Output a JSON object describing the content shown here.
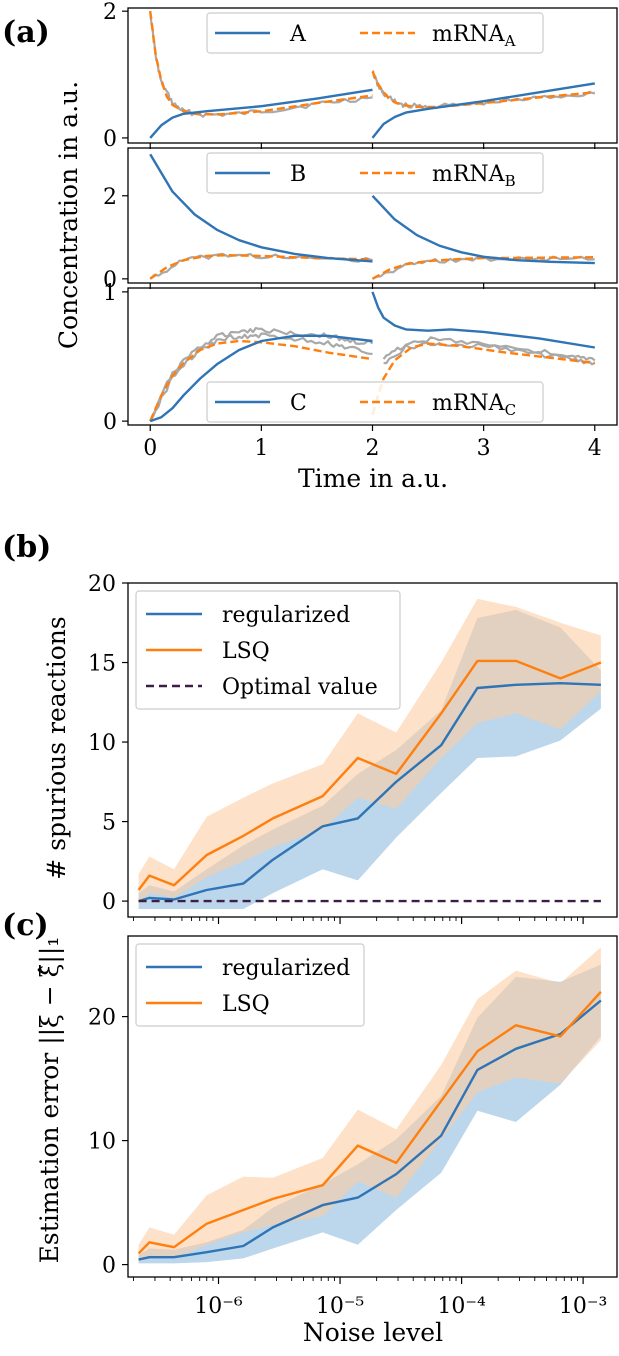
{
  "panel_labels": {
    "a": "(a)",
    "b": "(b)",
    "c": "(c)"
  },
  "colors": {
    "blue": "#2f74b5",
    "orange": "#ff7f0e",
    "gray": "#a9a9a9",
    "optimal": "#3b1f47",
    "blue_band": "#a6c8e6",
    "orange_band": "#fbcda4"
  },
  "chart_data": [
    {
      "type": "line",
      "panel": "(a)",
      "ylabel": "Concentration in a.u.",
      "xlabel": "",
      "xlim": [
        -0.2,
        4.2
      ],
      "ylim": [
        -0.08,
        2.05
      ],
      "yticks": [
        "0",
        "2"
      ],
      "legend": {
        "placement": "top-right",
        "entries": [
          {
            "text": "A",
            "style": "solid"
          },
          {
            "text": "mRNA",
            "sub": "A",
            "style": "dashed"
          }
        ]
      },
      "series": [
        {
          "name": "A",
          "style": "solid",
          "color": "blue",
          "segments": [
            {
              "x": [
                0,
                0.1,
                0.2,
                0.3,
                0.5,
                1,
                1.5,
                2
              ],
              "y": [
                0,
                0.2,
                0.32,
                0.38,
                0.42,
                0.5,
                0.62,
                0.76
              ]
            },
            {
              "x": [
                2,
                2.1,
                2.2,
                2.3,
                2.5,
                3,
                3.5,
                4
              ],
              "y": [
                0,
                0.22,
                0.33,
                0.4,
                0.46,
                0.58,
                0.72,
                0.86
              ]
            }
          ]
        },
        {
          "name": "mRNA_A",
          "style": "dashed",
          "color": "orange",
          "segments": [
            {
              "x": [
                0,
                0.05,
                0.1,
                0.15,
                0.2,
                0.3,
                0.4,
                0.6,
                1,
                1.5,
                2
              ],
              "y": [
                2,
                1.3,
                0.9,
                0.65,
                0.52,
                0.42,
                0.38,
                0.37,
                0.42,
                0.55,
                0.67
              ]
            },
            {
              "x": [
                2,
                2.05,
                2.1,
                2.15,
                2.2,
                2.3,
                2.4,
                2.6,
                3,
                3.5,
                4
              ],
              "y": [
                1.05,
                0.85,
                0.72,
                0.62,
                0.56,
                0.51,
                0.49,
                0.49,
                0.55,
                0.64,
                0.72
              ]
            }
          ]
        },
        {
          "name": "",
          "style": "noisy",
          "color": "gray",
          "segments": [
            {
              "x": [
                0,
                0.05,
                0.1,
                0.2,
                0.3,
                0.5,
                0.8,
                1.2,
                1.6,
                2
              ],
              "y": [
                2,
                1.28,
                0.88,
                0.55,
                0.42,
                0.36,
                0.38,
                0.46,
                0.56,
                0.64
              ]
            },
            {
              "x": [
                2,
                2.05,
                2.1,
                2.2,
                2.3,
                2.5,
                2.8,
                3.2,
                3.6,
                4
              ],
              "y": [
                1.05,
                0.82,
                0.7,
                0.57,
                0.51,
                0.49,
                0.52,
                0.58,
                0.65,
                0.7
              ]
            }
          ]
        }
      ]
    },
    {
      "type": "line",
      "panel": "",
      "ylabel": "",
      "xlabel": "",
      "xlim": [
        -0.2,
        4.2
      ],
      "ylim": [
        -0.1,
        3.15
      ],
      "yticks": [
        "0",
        "2"
      ],
      "legend": {
        "placement": "top-right",
        "entries": [
          {
            "text": "B",
            "style": "solid"
          },
          {
            "text": "mRNA",
            "sub": "B",
            "style": "dashed"
          }
        ]
      },
      "series": [
        {
          "name": "B",
          "style": "solid",
          "color": "blue",
          "segments": [
            {
              "x": [
                0,
                0.2,
                0.4,
                0.6,
                0.8,
                1,
                1.3,
                1.6,
                2
              ],
              "y": [
                3,
                2.1,
                1.55,
                1.18,
                0.93,
                0.76,
                0.6,
                0.5,
                0.42
              ]
            },
            {
              "x": [
                2,
                2.2,
                2.4,
                2.6,
                2.8,
                3,
                3.3,
                3.6,
                4
              ],
              "y": [
                2,
                1.43,
                1.05,
                0.8,
                0.64,
                0.53,
                0.45,
                0.41,
                0.38
              ]
            }
          ]
        },
        {
          "name": "mRNA_B",
          "style": "dashed",
          "color": "orange",
          "segments": [
            {
              "x": [
                0,
                0.15,
                0.3,
                0.5,
                0.7,
                1,
                1.5,
                2
              ],
              "y": [
                0,
                0.28,
                0.45,
                0.55,
                0.57,
                0.55,
                0.5,
                0.47
              ]
            },
            {
              "x": [
                2,
                2.15,
                2.3,
                2.5,
                2.8,
                3,
                3.5,
                4
              ],
              "y": [
                0,
                0.22,
                0.35,
                0.43,
                0.48,
                0.5,
                0.51,
                0.52
              ]
            }
          ]
        },
        {
          "name": "",
          "style": "noisy",
          "color": "gray",
          "segments": [
            {
              "x": [
                0,
                0.3,
                0.6,
                1,
                1.5,
                2
              ],
              "y": [
                0,
                0.44,
                0.57,
                0.55,
                0.49,
                0.45
              ]
            },
            {
              "x": [
                2,
                2.3,
                2.6,
                3,
                3.5,
                4
              ],
              "y": [
                0,
                0.33,
                0.44,
                0.49,
                0.48,
                0.47
              ]
            }
          ]
        }
      ]
    },
    {
      "type": "line",
      "panel": "",
      "ylabel": "",
      "xlabel": "Time in a.u.",
      "xlim": [
        -0.2,
        4.2
      ],
      "ylim": [
        -0.03,
        1.03
      ],
      "xticks": [
        "0",
        "1",
        "2",
        "3",
        "4"
      ],
      "yticks": [
        "0",
        "1"
      ],
      "legend": {
        "placement": "bottom-right",
        "entries": [
          {
            "text": "C",
            "style": "solid"
          },
          {
            "text": "mRNA",
            "sub": "C",
            "style": "dashed"
          }
        ]
      },
      "series": [
        {
          "name": "C",
          "style": "solid",
          "color": "blue",
          "segments": [
            {
              "x": [
                0,
                0.1,
                0.2,
                0.3,
                0.45,
                0.6,
                0.8,
                1,
                1.3,
                1.6,
                2
              ],
              "y": [
                0,
                0.03,
                0.1,
                0.2,
                0.33,
                0.44,
                0.55,
                0.62,
                0.66,
                0.66,
                0.62
              ]
            },
            {
              "x": [
                2,
                2.05,
                2.1,
                2.2,
                2.3,
                2.5,
                2.7,
                3,
                3.5,
                4
              ],
              "y": [
                1,
                0.88,
                0.8,
                0.74,
                0.71,
                0.7,
                0.71,
                0.69,
                0.64,
                0.57
              ]
            }
          ]
        },
        {
          "name": "mRNA_C",
          "style": "dashed",
          "color": "orange",
          "segments": [
            {
              "x": [
                0,
                0.1,
                0.2,
                0.3,
                0.45,
                0.6,
                0.8,
                1,
                1.3,
                1.6,
                2
              ],
              "y": [
                0,
                0.2,
                0.35,
                0.45,
                0.55,
                0.6,
                0.62,
                0.61,
                0.58,
                0.53,
                0.48
              ]
            },
            {
              "x": [
                2,
                2.05,
                2.1,
                2.2,
                2.35,
                2.5,
                2.8,
                3.2,
                3.6,
                4
              ],
              "y": [
                0.05,
                0.2,
                0.33,
                0.47,
                0.57,
                0.6,
                0.58,
                0.53,
                0.49,
                0.45
              ]
            }
          ]
        },
        {
          "name": "",
          "style": "noisy",
          "color": "gray",
          "segments": [
            {
              "x": [
                0,
                0.2,
                0.4,
                0.6,
                0.8,
                1,
                1.3,
                1.6,
                1.8,
                2
              ],
              "y": [
                0,
                0.38,
                0.55,
                0.65,
                0.7,
                0.71,
                0.68,
                0.66,
                0.62,
                0.6
              ]
            },
            {
              "x": [
                0,
                0.2,
                0.4,
                0.6,
                0.8,
                1,
                1.3,
                1.6,
                1.8,
                2
              ],
              "y": [
                0,
                0.34,
                0.52,
                0.62,
                0.66,
                0.66,
                0.64,
                0.6,
                0.56,
                0.52
              ]
            },
            {
              "x": [
                2.1,
                2.3,
                2.6,
                3,
                3.4,
                3.8,
                4
              ],
              "y": [
                0.45,
                0.57,
                0.6,
                0.58,
                0.53,
                0.48,
                0.45
              ]
            },
            {
              "x": [
                2.1,
                2.3,
                2.6,
                3,
                3.4,
                3.8,
                4
              ],
              "y": [
                0.48,
                0.6,
                0.64,
                0.6,
                0.55,
                0.5,
                0.47
              ]
            }
          ]
        }
      ]
    },
    {
      "type": "line",
      "panel": "(b)",
      "xscale": "log",
      "xlim": [
        1.8e-07,
        0.0019
      ],
      "ylim": [
        -1,
        20
      ],
      "ylabel": "# spurious reactions",
      "xlabel": "",
      "yticks": [
        0,
        5,
        10,
        15,
        20
      ],
      "legend": {
        "placement": "top-left",
        "entries": [
          {
            "text": "regularized",
            "style": "solid",
            "color": "blue"
          },
          {
            "text": "LSQ",
            "style": "solid",
            "color": "orange"
          },
          {
            "text": "Optimal value",
            "style": "dashed",
            "color": "optimal"
          }
        ]
      },
      "x": [
        2.2e-07,
        2.7e-07,
        4.3e-07,
        8e-07,
        1.6e-06,
        2.8e-06,
        7.2e-06,
        1.4e-05,
        2.9e-05,
        6.8e-05,
        0.000135,
        0.00028,
        0.00065,
        0.0014
      ],
      "series": [
        {
          "name": "regularized",
          "color": "blue",
          "values": [
            0,
            0.2,
            0.1,
            0.7,
            1.1,
            2.6,
            4.7,
            5.2,
            7.5,
            9.8,
            13.4,
            13.6,
            13.7,
            13.6
          ],
          "band_low": [
            -0.5,
            -0.5,
            -0.5,
            -0.5,
            -0.5,
            0.5,
            2,
            1.3,
            4,
            6.8,
            9,
            9.1,
            10.1,
            12.1
          ],
          "band_high": [
            0.5,
            1,
            0.6,
            2,
            3.5,
            4.5,
            6,
            8,
            9.5,
            12,
            17.8,
            18.3,
            17.2,
            14.5
          ]
        },
        {
          "name": "LSQ",
          "color": "orange",
          "values": [
            0.7,
            1.6,
            1,
            2.9,
            4.1,
            5.2,
            6.6,
            9,
            8,
            11.8,
            15.1,
            15.1,
            14,
            15
          ],
          "band_low": [
            -0.3,
            0.5,
            0.2,
            1.5,
            2.5,
            3.4,
            4.5,
            6.5,
            5.8,
            9,
            11.2,
            11.8,
            10.8,
            13.2
          ],
          "band_high": [
            1.7,
            2.8,
            2,
            5.3,
            6.5,
            7.4,
            8.6,
            11.8,
            10.6,
            15,
            19,
            18.5,
            17.5,
            16.7
          ]
        },
        {
          "name": "Optimal value",
          "color": "optimal",
          "style": "dashed",
          "values": [
            0,
            0,
            0,
            0,
            0,
            0,
            0,
            0,
            0,
            0,
            0,
            0,
            0,
            0
          ]
        }
      ]
    },
    {
      "type": "line",
      "panel": "(c)",
      "xscale": "log",
      "xlim": [
        1.8e-07,
        0.0019
      ],
      "ylim": [
        -1,
        26.5
      ],
      "ylabel": "Estimation error ||ξ − ξ̂||₁",
      "xlabel": "Noise level",
      "xticks": [
        1e-06,
        1e-05,
        0.0001,
        0.001
      ],
      "xtick_labels": [
        "10⁻⁶",
        "10⁻⁵",
        "10⁻⁴",
        "10⁻³"
      ],
      "yticks": [
        0,
        10,
        20
      ],
      "legend": {
        "placement": "top-left",
        "entries": [
          {
            "text": "regularized",
            "style": "solid",
            "color": "blue"
          },
          {
            "text": "LSQ",
            "style": "solid",
            "color": "orange"
          }
        ]
      },
      "x": [
        2.2e-07,
        2.7e-07,
        4.3e-07,
        8e-07,
        1.6e-06,
        2.8e-06,
        7.2e-06,
        1.4e-05,
        2.9e-05,
        6.8e-05,
        0.000135,
        0.00028,
        0.00065,
        0.0014
      ],
      "series": [
        {
          "name": "regularized",
          "color": "blue",
          "values": [
            0.4,
            0.6,
            0.6,
            1,
            1.5,
            3,
            4.8,
            5.4,
            7.3,
            10.4,
            15.7,
            17.4,
            18.6,
            21.3
          ],
          "band_low": [
            0.1,
            0.1,
            0.1,
            0.2,
            0.5,
            1.3,
            2.6,
            1.6,
            4.4,
            7.4,
            12.4,
            11.5,
            14.5,
            18.4
          ],
          "band_high": [
            0.8,
            1.3,
            1.2,
            1.8,
            2.8,
            4.6,
            6.5,
            8.1,
            10.1,
            13.6,
            19.9,
            23.2,
            22.8,
            24.2
          ]
        },
        {
          "name": "LSQ",
          "color": "orange",
          "values": [
            0.9,
            1.8,
            1.4,
            3.3,
            4.4,
            5.3,
            6.4,
            9.6,
            8.2,
            13.2,
            17.2,
            19.3,
            18.4,
            22
          ],
          "band_low": [
            0.2,
            0.6,
            0.5,
            1.6,
            2.6,
            3.2,
            3.9,
            6.7,
            5.4,
            10.1,
            13.9,
            15.1,
            14.6,
            18.1
          ],
          "band_high": [
            1.6,
            3,
            2.4,
            5.6,
            7.1,
            7,
            8.6,
            12.5,
            10.9,
            16.1,
            21.4,
            23.7,
            22.7,
            25.6
          ]
        }
      ]
    }
  ]
}
